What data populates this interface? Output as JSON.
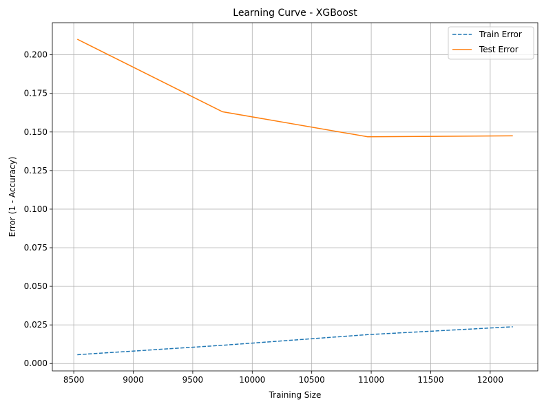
{
  "chart_data": {
    "type": "line",
    "title": "Learning Curve - XGBoost",
    "xlabel": "Training Size",
    "ylabel": "Error (1 - Accuracy)",
    "xlim": [
      8320,
      12400
    ],
    "ylim": [
      -0.0048,
      0.2208
    ],
    "x_ticks": [
      8500,
      9000,
      9500,
      10000,
      10500,
      11000,
      11500,
      12000
    ],
    "x_tick_labels": [
      "8500",
      "9000",
      "9500",
      "10000",
      "10500",
      "11000",
      "11500",
      "12000"
    ],
    "y_ticks": [
      0.0,
      0.025,
      0.05,
      0.075,
      0.1,
      0.125,
      0.15,
      0.175,
      0.2
    ],
    "y_tick_labels": [
      "0.000",
      "0.025",
      "0.050",
      "0.075",
      "0.100",
      "0.125",
      "0.150",
      "0.175",
      "0.200"
    ],
    "grid": true,
    "legend_position": "top-right",
    "series": [
      {
        "name": "Train Error",
        "color": "#1f77b4",
        "style": "dashed",
        "x": [
          8530,
          9750,
          10970,
          12190
        ],
        "y": [
          0.0057,
          0.0118,
          0.0187,
          0.0238
        ]
      },
      {
        "name": "Test Error",
        "color": "#ff7f0e",
        "style": "solid",
        "x": [
          8530,
          9750,
          10970,
          12190
        ],
        "y": [
          0.2101,
          0.1631,
          0.1469,
          0.1475
        ]
      }
    ]
  }
}
